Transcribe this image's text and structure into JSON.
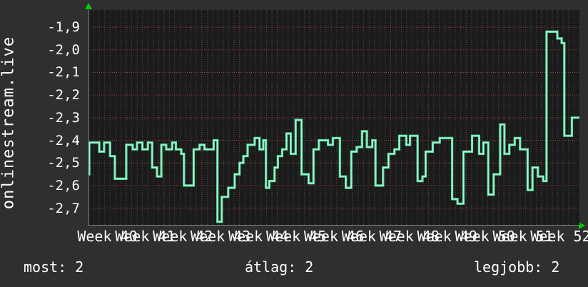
{
  "title": {
    "vertical_label": "onlinestream.live"
  },
  "colors": {
    "background": "#2f2f2f",
    "plot_background": "#1b1b1b",
    "grid_minor": "#4c4c4c",
    "grid_major_red": "#9e4343",
    "axis": "#7d7d7d",
    "arrow_green": "#00cf00",
    "line": "#57e2a3",
    "line_highlight": "#c6f6de",
    "text": "#ffffff"
  },
  "footer": {
    "most": "most: 2",
    "atlag": "átlag: 2",
    "legjobb": "legjobb: 2"
  },
  "chart_data": {
    "type": "line",
    "step": true,
    "title": "",
    "ylabel": "onlinestream.live",
    "xlabel": "",
    "grid": "on",
    "legend_position": "bottom-stats",
    "ylim": [
      -2.777,
      -1.824
    ],
    "ygrid_values": [
      -1.9,
      -2.0,
      -2.1,
      -2.2,
      -2.3,
      -2.4,
      -2.5,
      -2.6,
      -2.7
    ],
    "ytick_labels": [
      "-1,9",
      "-2,0",
      "-2,1",
      "-2,2",
      "-2,3",
      "-2,4",
      "-2,5",
      "-2,6",
      "-2,7"
    ],
    "categories": [
      "Week 40",
      "Week 41",
      "Week 42",
      "Week 43",
      "Week 44",
      "Week 45",
      "Week 46",
      "Week 47",
      "Week 48",
      "Week 49",
      "Week 50",
      "Week 51",
      "Week 52"
    ],
    "x_unit": "days",
    "x_range": [
      0,
      91
    ],
    "days_per_week": 7,
    "stats": {
      "most": "2",
      "atlag": "2",
      "legjobb": "2"
    },
    "series": [
      {
        "name": "onlinestream.live",
        "color": "#57e2a3",
        "end_day": 91,
        "step_points_day_value": [
          [
            0,
            -2.55
          ],
          [
            0.15,
            -2.41
          ],
          [
            2.0,
            -2.45
          ],
          [
            2.9,
            -2.41
          ],
          [
            4.0,
            -2.47
          ],
          [
            4.9,
            -2.57
          ],
          [
            7.0,
            -2.42
          ],
          [
            8.2,
            -2.44
          ],
          [
            9.0,
            -2.41
          ],
          [
            10.0,
            -2.44
          ],
          [
            11.0,
            -2.41
          ],
          [
            11.8,
            -2.52
          ],
          [
            12.7,
            -2.56
          ],
          [
            13.5,
            -2.42
          ],
          [
            14.4,
            -2.44
          ],
          [
            15.5,
            -2.41
          ],
          [
            16.2,
            -2.44
          ],
          [
            17.2,
            -2.46
          ],
          [
            17.7,
            -2.6
          ],
          [
            19.5,
            -2.44
          ],
          [
            20.6,
            -2.42
          ],
          [
            21.5,
            -2.44
          ],
          [
            23.2,
            -2.4
          ],
          [
            23.9,
            -2.76
          ],
          [
            24.7,
            -2.65
          ],
          [
            25.9,
            -2.61
          ],
          [
            27.1,
            -2.55
          ],
          [
            28.0,
            -2.5
          ],
          [
            28.7,
            -2.47
          ],
          [
            29.5,
            -2.42
          ],
          [
            30.8,
            -2.39
          ],
          [
            31.7,
            -2.44
          ],
          [
            32.4,
            -2.4
          ],
          [
            32.9,
            -2.61
          ],
          [
            33.5,
            -2.58
          ],
          [
            34.5,
            -2.52
          ],
          [
            35.1,
            -2.47
          ],
          [
            35.9,
            -2.44
          ],
          [
            36.7,
            -2.37
          ],
          [
            37.5,
            -2.46
          ],
          [
            38.4,
            -2.31
          ],
          [
            39.5,
            -2.55
          ],
          [
            40.8,
            -2.59
          ],
          [
            41.7,
            -2.44
          ],
          [
            42.7,
            -2.4
          ],
          [
            44.4,
            -2.42
          ],
          [
            45.3,
            -2.39
          ],
          [
            46.6,
            -2.56
          ],
          [
            47.7,
            -2.61
          ],
          [
            48.7,
            -2.45
          ],
          [
            49.7,
            -2.43
          ],
          [
            50.7,
            -2.36
          ],
          [
            51.6,
            -2.43
          ],
          [
            52.6,
            -2.4
          ],
          [
            53.2,
            -2.6
          ],
          [
            54.6,
            -2.52
          ],
          [
            55.6,
            -2.46
          ],
          [
            56.7,
            -2.44
          ],
          [
            57.6,
            -2.38
          ],
          [
            58.9,
            -2.42
          ],
          [
            59.6,
            -2.38
          ],
          [
            61.0,
            -2.58
          ],
          [
            61.9,
            -2.56
          ],
          [
            62.5,
            -2.45
          ],
          [
            63.8,
            -2.41
          ],
          [
            65.1,
            -2.39
          ],
          [
            67.4,
            -2.66
          ],
          [
            68.4,
            -2.68
          ],
          [
            69.5,
            -2.45
          ],
          [
            71.1,
            -2.38
          ],
          [
            72.4,
            -2.46
          ],
          [
            73.2,
            -2.41
          ],
          [
            74.1,
            -2.64
          ],
          [
            75.1,
            -2.55
          ],
          [
            76.3,
            -2.33
          ],
          [
            77.1,
            -2.46
          ],
          [
            78.0,
            -2.42
          ],
          [
            79.0,
            -2.39
          ],
          [
            80.0,
            -2.44
          ],
          [
            81.4,
            -2.62
          ],
          [
            82.3,
            -2.52
          ],
          [
            83.3,
            -2.56
          ],
          [
            84.3,
            -2.58
          ],
          [
            84.9,
            -1.92
          ],
          [
            86.9,
            -1.95
          ],
          [
            87.7,
            -1.97
          ],
          [
            88.2,
            -2.38
          ],
          [
            89.6,
            -2.3
          ]
        ]
      }
    ]
  }
}
